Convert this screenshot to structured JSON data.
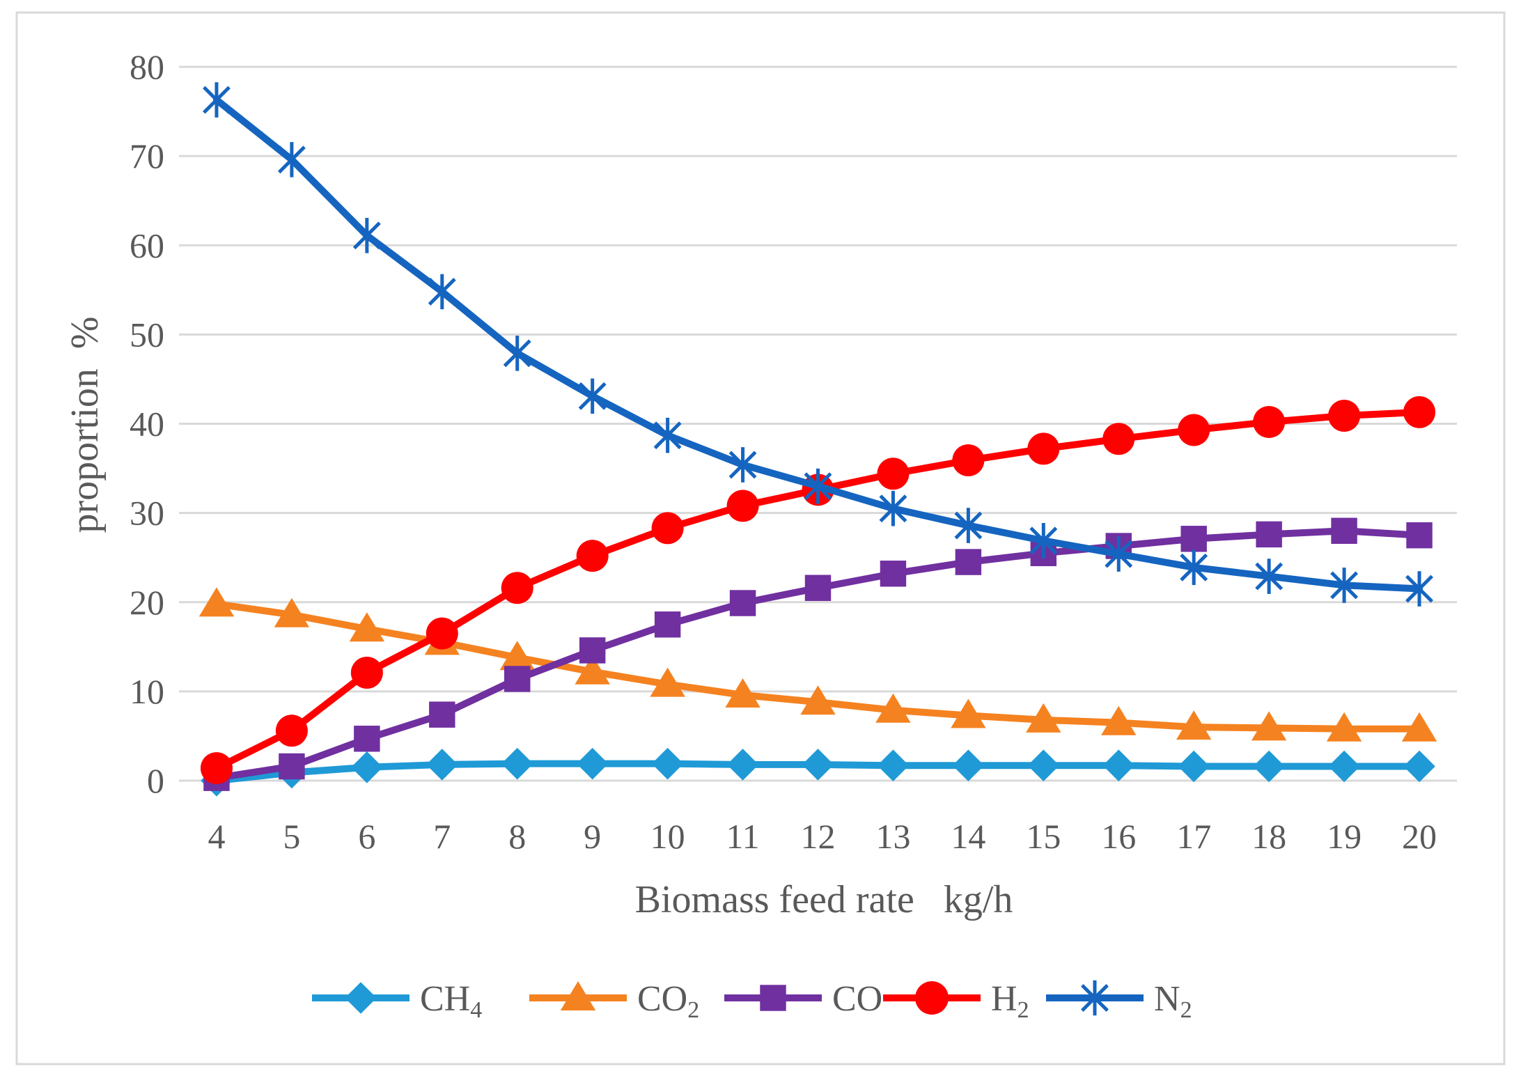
{
  "chart_data": {
    "type": "line",
    "title": "",
    "xlabel": "Biomass feed rate   kg/h",
    "ylabel": "proportion  %",
    "ylim": [
      0,
      80
    ],
    "yticks": [
      "0",
      "10",
      "20",
      "30",
      "40",
      "50",
      "60",
      "70",
      "80"
    ],
    "categories": [
      "4",
      "5",
      "6",
      "7",
      "8",
      "9",
      "10",
      "11",
      "12",
      "13",
      "14",
      "15",
      "16",
      "17",
      "18",
      "19",
      "20"
    ],
    "grid": true,
    "legend_position": "bottom",
    "series": [
      {
        "name": "CH4",
        "label_main": "CH",
        "label_sub": "4",
        "color": "#1f9ad6",
        "marker": "diamond",
        "values": [
          0,
          0.9,
          1.5,
          1.8,
          1.9,
          1.9,
          1.9,
          1.8,
          1.8,
          1.7,
          1.7,
          1.7,
          1.7,
          1.6,
          1.6,
          1.6,
          1.6
        ]
      },
      {
        "name": "CO2",
        "label_main": "CO",
        "label_sub": "2",
        "color": "#f58220",
        "marker": "triangle",
        "values": [
          19.8,
          18.6,
          17.0,
          15.5,
          13.8,
          12.2,
          10.8,
          9.6,
          8.8,
          7.9,
          7.3,
          6.8,
          6.5,
          6.0,
          5.9,
          5.8,
          5.8
        ]
      },
      {
        "name": "CO",
        "label_main": "CO",
        "label_sub": "",
        "color": "#7030a0",
        "marker": "square",
        "values": [
          0.3,
          1.6,
          4.7,
          7.4,
          11.4,
          14.6,
          17.5,
          19.9,
          21.6,
          23.2,
          24.5,
          25.5,
          26.3,
          27.1,
          27.6,
          28.0,
          27.5
        ]
      },
      {
        "name": "H2",
        "label_main": "H",
        "label_sub": "2",
        "color": "#ff0000",
        "marker": "circle",
        "values": [
          1.4,
          5.6,
          12.1,
          16.5,
          21.6,
          25.2,
          28.3,
          30.8,
          32.6,
          34.4,
          35.9,
          37.2,
          38.3,
          39.3,
          40.2,
          40.9,
          41.3
        ]
      },
      {
        "name": "N2",
        "label_main": "N",
        "label_sub": "2",
        "color": "#1565c0",
        "marker": "asterisk",
        "values": [
          76.3,
          69.6,
          61.1,
          54.8,
          47.9,
          43.1,
          38.7,
          35.4,
          33.0,
          30.5,
          28.6,
          26.9,
          25.4,
          23.9,
          22.9,
          21.9,
          21.5
        ]
      }
    ]
  }
}
